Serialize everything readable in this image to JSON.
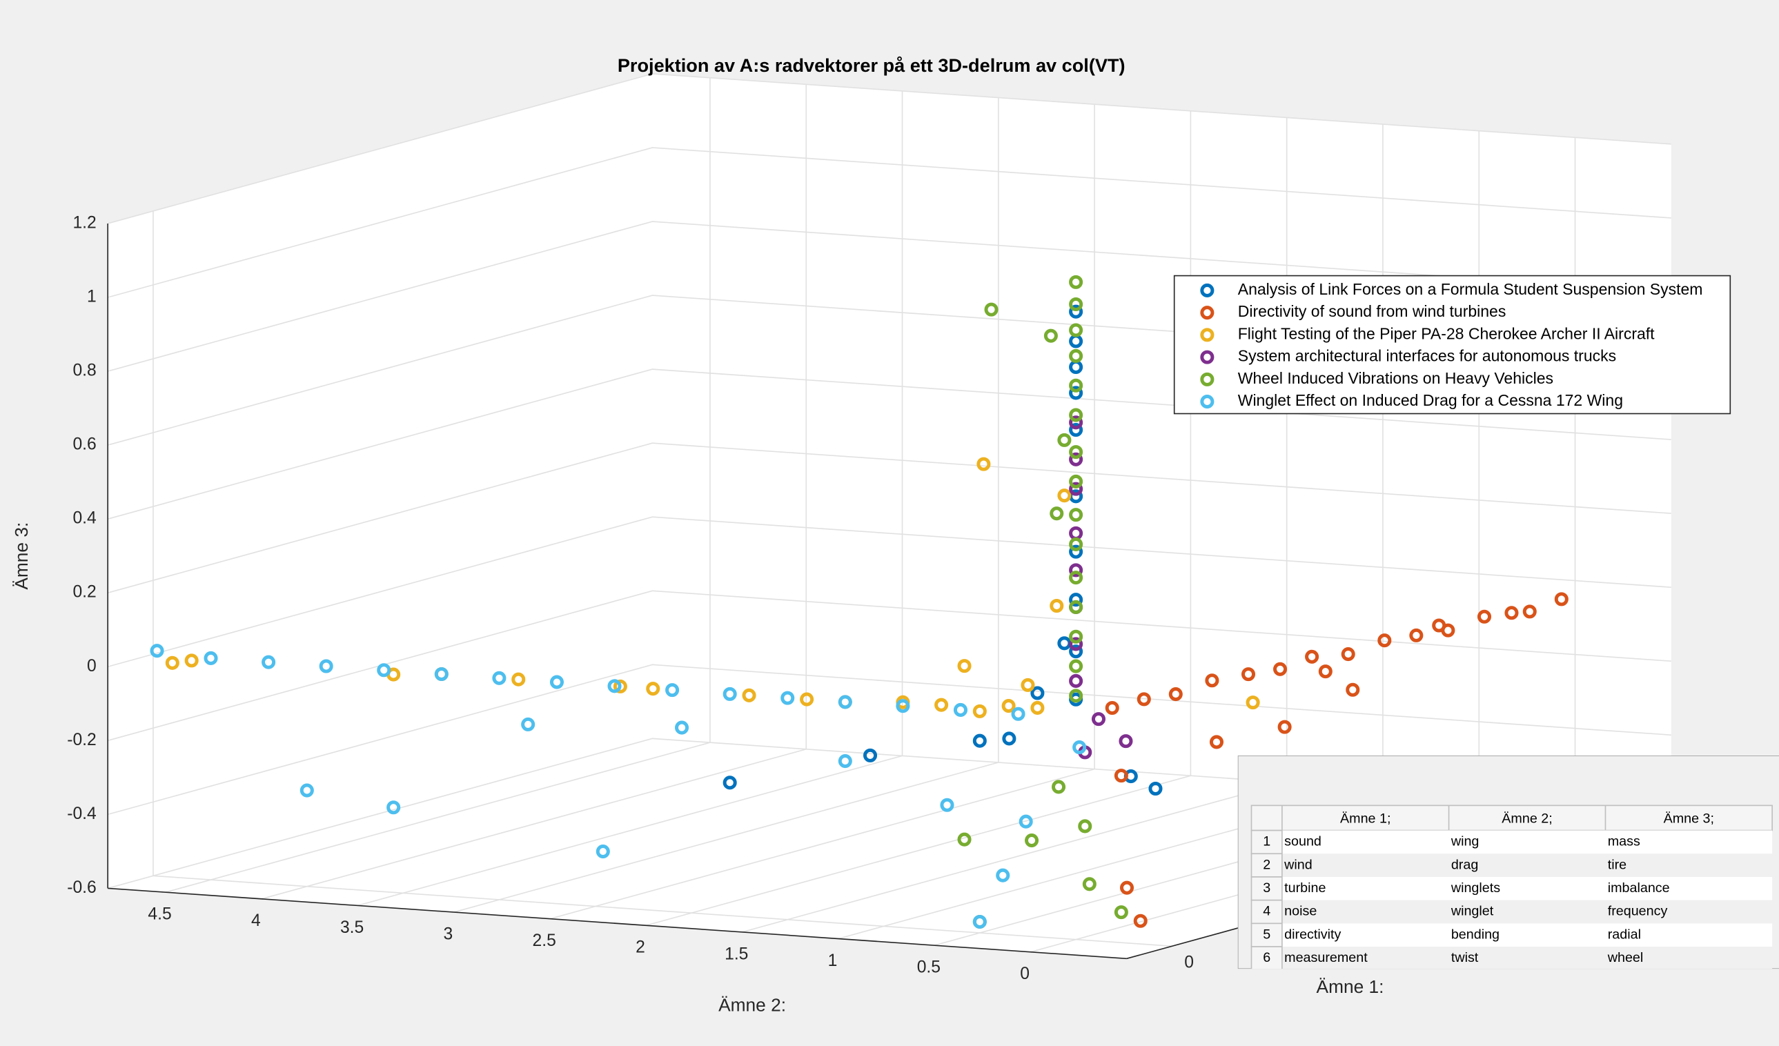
{
  "chart_data": {
    "type": "scatter3d",
    "title": "Projektion av A:s radvektorer på ett 3D-delrum av col(VT)",
    "xlabel": "Ämne 1:",
    "ylabel": "Ämne 2:",
    "zlabel": "Ämne 3:",
    "xlim": [
      -0.1,
      1.1
    ],
    "ylim": [
      -0.5,
      4.8
    ],
    "zlim": [
      -0.6,
      1.2
    ],
    "xticks": [
      0
    ],
    "yticks": [
      0,
      0.5,
      1,
      1.5,
      2,
      2.5,
      3,
      3.5,
      4,
      4.5
    ],
    "zticks": [
      -0.6,
      -0.4,
      -0.2,
      0,
      0.2,
      0.4,
      0.6,
      0.8,
      1,
      1.2
    ],
    "grid": true,
    "legend": "northeast",
    "series": [
      {
        "name": "Analysis of Link Forces on a Formula Student Suspension System",
        "color": "#0072BD",
        "x": [
          0,
          0,
          0,
          0,
          0,
          0,
          0,
          0,
          0,
          0,
          0,
          0,
          0.15,
          0.1,
          0,
          0,
          -0.02,
          0
        ],
        "y": [
          0,
          0,
          0,
          0,
          0,
          0,
          0,
          0,
          0,
          0,
          1.07,
          1.8,
          -0.06,
          -0.05,
          0.2,
          0.5,
          0.3,
          0.06
        ],
        "z": [
          1.1,
          1.02,
          0.95,
          0.88,
          0.78,
          0.6,
          0.45,
          0.32,
          0.18,
          0.05,
          -0.14,
          -0.24,
          -0.24,
          -0.19,
          0.06,
          -0.08,
          -0.06,
          0.2
        ]
      },
      {
        "name": "Directivity of sound from wind turbines",
        "color": "#D95319",
        "x": [
          0.08,
          0.15,
          0.22,
          0.3,
          0.38,
          0.45,
          0.52,
          0.6,
          0.68,
          0.75,
          0.82,
          0.9,
          0.96,
          1.0,
          1.07,
          0.46,
          0.61,
          0.31,
          0.1,
          0.07,
          0.1,
          0.55,
          0.8
        ],
        "y": [
          0,
          0,
          0,
          0,
          0,
          0,
          0,
          0,
          0,
          0,
          0,
          0,
          0,
          0,
          0,
          0,
          0,
          0,
          -0.1,
          -0.1,
          0,
          0,
          0
        ],
        "z": [
          0,
          0,
          -0.01,
          0,
          -0.01,
          -0.02,
          -0.01,
          -0.03,
          -0.02,
          -0.03,
          -0.04,
          -0.03,
          -0.04,
          -0.05,
          -0.04,
          -0.18,
          -0.13,
          -0.17,
          -0.58,
          -0.48,
          -0.19,
          -0.06,
          -0.02
        ]
      },
      {
        "name": "Flight Testing of the Piper PA-28 Cherokee Archer II Aircraft",
        "color": "#EDB120",
        "x": [
          0,
          0,
          0,
          0,
          0,
          0,
          0,
          0,
          0,
          0,
          0,
          0,
          0,
          0,
          0,
          0,
          0,
          0.39,
          0,
          0,
          0
        ],
        "y": [
          4.7,
          4.6,
          3.55,
          3.3,
          2.9,
          2.37,
          2.2,
          1.7,
          1.4,
          1.2,
          0.9,
          0.7,
          0.5,
          0.35,
          0.2,
          0.48,
          0.58,
          0,
          0.06,
          0.25,
          0.1
        ],
        "z": [
          -0.02,
          -0.01,
          -0.01,
          0,
          0,
          0,
          0,
          0,
          0,
          0,
          0.01,
          0.01,
          0,
          0.02,
          0.02,
          0.67,
          0.12,
          -0.09,
          0.6,
          0.08,
          0.3
        ]
      },
      {
        "name": "System architectural interfaces for autonomous trucks",
        "color": "#7E2F8E",
        "x": [
          0,
          0,
          0,
          0,
          0,
          0,
          0,
          0,
          0.11,
          0.02,
          0.05
        ],
        "y": [
          0,
          0,
          0,
          0,
          0,
          0,
          0,
          0,
          0,
          0,
          0
        ],
        "z": [
          0.8,
          0.7,
          0.62,
          0.5,
          0.4,
          0.3,
          0.2,
          0.1,
          -0.1,
          -0.1,
          -0.02
        ]
      },
      {
        "name": "Wheel Induced Vibrations on Heavy Vehicles",
        "color": "#77AC30",
        "x": [
          0,
          0,
          0,
          0,
          0,
          0,
          0,
          0,
          0,
          0,
          0,
          0,
          0,
          0,
          0,
          0,
          0,
          0,
          0,
          0.03,
          0.1,
          0,
          0,
          0,
          0,
          0.02
        ],
        "y": [
          0,
          0,
          0,
          0,
          0,
          0,
          0,
          0,
          0,
          0,
          0,
          0,
          0,
          0,
          0,
          0.44,
          0.13,
          0.58,
          0.5,
          0,
          0,
          0.23,
          0.09,
          0.06,
          0.1,
          0
        ],
        "z": [
          1.18,
          1.12,
          1.05,
          0.98,
          0.9,
          0.82,
          0.72,
          0.64,
          0.55,
          0.47,
          0.38,
          0.3,
          0.22,
          0.14,
          0.06,
          1.09,
          1.03,
          -0.35,
          -0.57,
          -0.46,
          -0.56,
          -0.34,
          -0.19,
          0.75,
          0.55,
          -0.3
        ]
      },
      {
        "name": "Winglet Effect on Induced Drag for a Cessna 172 Wing",
        "color": "#4DBEEE",
        "x": [
          0,
          0,
          0,
          0,
          0,
          0,
          0,
          0,
          0,
          0,
          0,
          0,
          0,
          0,
          0,
          0,
          0,
          0,
          0,
          0,
          0,
          0,
          0,
          0,
          0,
          0,
          0.05
        ],
        "y": [
          4.78,
          4.5,
          4.2,
          3.9,
          3.6,
          3.3,
          3.0,
          2.7,
          2.4,
          2.1,
          1.8,
          1.5,
          1.2,
          0.9,
          0.6,
          0.3,
          4.0,
          3.55,
          2.46,
          2.85,
          1.2,
          0.67,
          0.5,
          0.38,
          0.26,
          2.05,
          0.1
        ],
        "z": [
          0.01,
          0,
          0,
          0,
          0,
          0,
          0,
          0,
          0,
          0,
          0,
          0,
          0,
          0,
          0,
          0,
          -0.34,
          -0.37,
          -0.45,
          -0.12,
          -0.16,
          -0.26,
          -0.57,
          -0.44,
          -0.29,
          -0.1,
          -0.1
        ]
      }
    ]
  },
  "table": {
    "columns": [
      "Ämne 1;",
      "Ämne 2;",
      "Ämne 3;"
    ],
    "row_numbers": [
      1,
      2,
      3,
      4,
      5,
      6
    ],
    "rows": [
      [
        "sound",
        "wing",
        "mass"
      ],
      [
        "wind",
        "drag",
        "tire"
      ],
      [
        "turbine",
        "winglets",
        "imbalance"
      ],
      [
        "noise",
        "winglet",
        "frequency"
      ],
      [
        "directivity",
        "bending",
        "radial"
      ],
      [
        "measurement",
        "twist",
        "wheel"
      ]
    ]
  }
}
